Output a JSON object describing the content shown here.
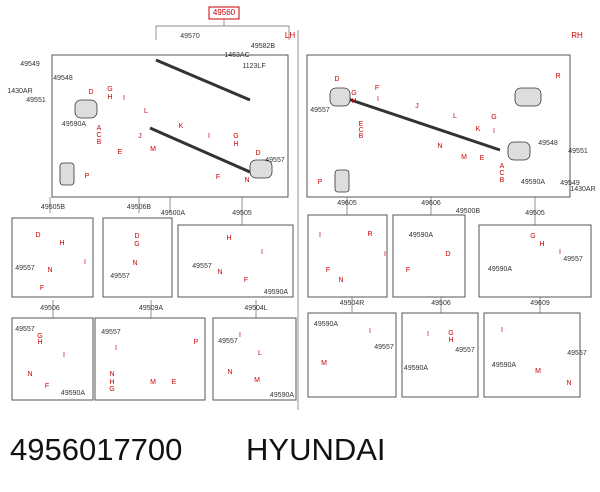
{
  "header": {
    "part_id": "49560",
    "left_side": "LH",
    "right_side": "RH"
  },
  "labels": [
    "49570",
    "1463AC",
    "49582B",
    "1123LF",
    "49549",
    "1430AR",
    "49551",
    "49548",
    "49590A",
    "D",
    "G",
    "H",
    "I",
    "L",
    "A",
    "C",
    "B",
    "E",
    "J",
    "M",
    "K",
    "I",
    "G",
    "H",
    "D",
    "49557",
    "F",
    "N",
    "P",
    "D",
    "G",
    "H",
    "49557",
    "F",
    "I",
    "J",
    "L",
    "K",
    "N",
    "E",
    "M",
    "G",
    "I",
    "R",
    "49548",
    "49551",
    "49549",
    "1430AR",
    "49590A",
    "A",
    "C",
    "B",
    "E",
    "C",
    "B",
    "P",
    "49505B",
    "49506B",
    "49500A",
    "49505",
    "49605",
    "49606",
    "49500B",
    "49505",
    "49506",
    "49509A",
    "49504L",
    "49504R",
    "49506",
    "49609",
    "D",
    "H",
    "49557",
    "N",
    "F",
    "I",
    "49557",
    "N",
    "D",
    "G",
    "H",
    "49557",
    "N",
    "F",
    "I",
    "49590A",
    "I",
    "F",
    "N",
    "R",
    "I",
    "F",
    "49590A",
    "D",
    "G",
    "H",
    "I",
    "49557",
    "49590A",
    "49557",
    "G",
    "H",
    "I",
    "N",
    "F",
    "49590A",
    "49557",
    "I",
    "N",
    "H",
    "G",
    "M",
    "P",
    "E",
    "49557",
    "I",
    "L",
    "N",
    "M",
    "49590A",
    "49590A",
    "M",
    "I",
    "49557",
    "I",
    "G",
    "H",
    "49590A",
    "49557",
    "I",
    "49590A",
    "M",
    "N",
    "49557"
  ],
  "footer": {
    "part_number": "4956017700",
    "brand": "HYUNDAI"
  }
}
